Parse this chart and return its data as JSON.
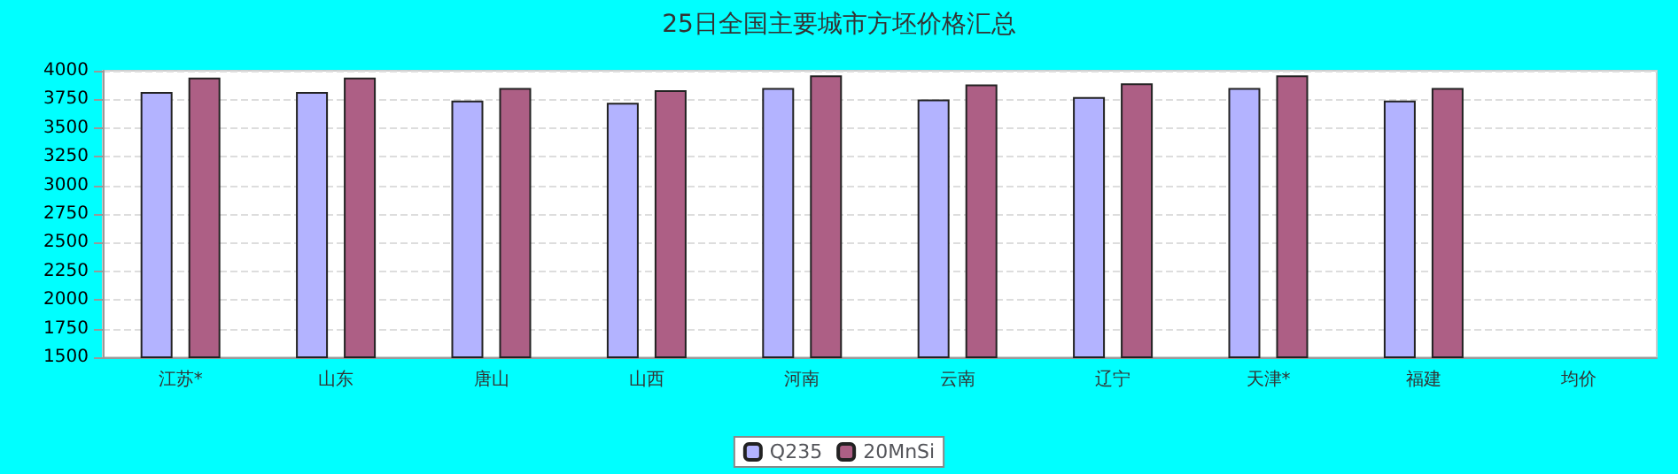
{
  "chart_data": {
    "type": "bar",
    "title": "25日全国主要城市方坯价格汇总",
    "categories": [
      "江苏*",
      "山东",
      "唐山",
      "山西",
      "河南",
      "云南",
      "辽宁",
      "天津*",
      "福建",
      "均价"
    ],
    "series": [
      {
        "name": "Q235",
        "color": "#b3b3ff",
        "values": [
          3815,
          3815,
          3740,
          3720,
          3850,
          3750,
          3770,
          3850,
          3740,
          null
        ]
      },
      {
        "name": "20MnSi",
        "color": "#ad5f85",
        "values": [
          3940,
          3940,
          3850,
          3830,
          3960,
          3880,
          3890,
          3960,
          3850,
          null
        ]
      }
    ],
    "ylim": [
      1500,
      4000
    ],
    "yticks": [
      1500,
      1750,
      2000,
      2250,
      2500,
      2750,
      3000,
      3250,
      3500,
      3750,
      4000
    ],
    "grid": "y",
    "legend": "bottom"
  }
}
